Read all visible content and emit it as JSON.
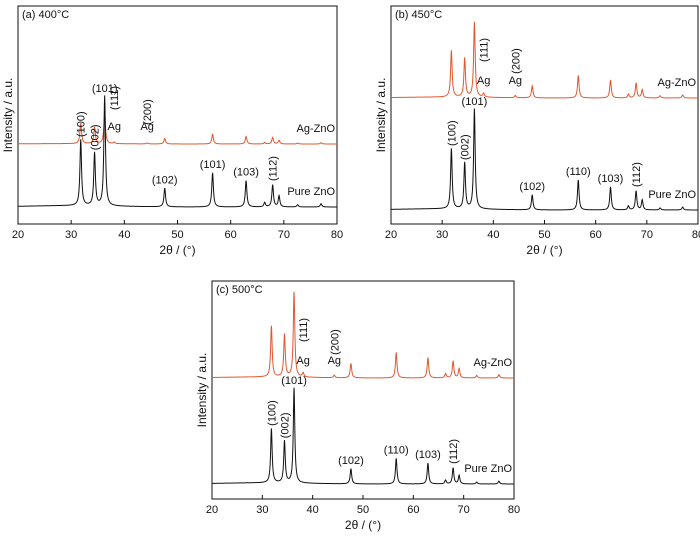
{
  "chart_data": [
    {
      "type": "line",
      "title": "(a) 400°C",
      "xlabel": "2θ / (°)",
      "ylabel": "Intensity / a.u.",
      "xlim": [
        20,
        80
      ],
      "x_ticks": [
        20,
        30,
        40,
        50,
        60,
        70,
        80
      ],
      "y_ticks_shown": false,
      "series": [
        {
          "name": "Ag-ZnO",
          "color": "#e0582f",
          "peaks": [
            [
              31.8,
              0.68
            ],
            [
              34.4,
              0.55
            ],
            [
              36.3,
              1.0
            ],
            [
              38.1,
              0.05
            ],
            [
              44.3,
              0.03
            ],
            [
              47.6,
              0.18
            ],
            [
              56.6,
              0.32
            ],
            [
              62.9,
              0.25
            ],
            [
              66.4,
              0.05
            ],
            [
              67.9,
              0.22
            ],
            [
              69.1,
              0.12
            ],
            [
              72.6,
              0.03
            ],
            [
              77.0,
              0.04
            ]
          ],
          "labels": [
            {
              "text": "Ag",
              "x": 38.1
            },
            {
              "text": "(111)",
              "x": 38.1
            },
            {
              "text": "Ag",
              "x": 44.3
            },
            {
              "text": "(200)",
              "x": 44.3
            }
          ]
        },
        {
          "name": "Pure ZnO",
          "color": "#111111",
          "peaks": [
            [
              31.8,
              0.6
            ],
            [
              34.4,
              0.48
            ],
            [
              36.3,
              1.0
            ],
            [
              47.6,
              0.17
            ],
            [
              56.6,
              0.31
            ],
            [
              62.9,
              0.24
            ],
            [
              66.4,
              0.04
            ],
            [
              67.9,
              0.2
            ],
            [
              69.1,
              0.1
            ],
            [
              72.6,
              0.02
            ],
            [
              77.0,
              0.03
            ]
          ],
          "labels": [
            {
              "text": "(100)",
              "x": 31.8
            },
            {
              "text": "(002)",
              "x": 34.4
            },
            {
              "text": "(101)",
              "x": 36.3
            },
            {
              "text": "(102)",
              "x": 47.6
            },
            {
              "text": "(101)",
              "x": 56.6
            },
            {
              "text": "(103)",
              "x": 62.9
            },
            {
              "text": "(112)",
              "x": 67.9
            }
          ]
        }
      ]
    },
    {
      "type": "line",
      "title": "(b) 450°C",
      "xlabel": "2θ / (°)",
      "ylabel": "Intensity / a.u.",
      "xlim": [
        20,
        80
      ],
      "x_ticks": [
        20,
        30,
        40,
        50,
        60,
        70,
        80
      ],
      "y_ticks_shown": false,
      "series": [
        {
          "name": "Ag-ZnO",
          "color": "#e0582f",
          "peaks": [
            [
              31.8,
              0.62
            ],
            [
              34.4,
              0.52
            ],
            [
              36.3,
              1.0
            ],
            [
              38.1,
              0.05
            ],
            [
              44.3,
              0.03
            ],
            [
              47.6,
              0.16
            ],
            [
              56.6,
              0.3
            ],
            [
              62.9,
              0.24
            ],
            [
              66.4,
              0.05
            ],
            [
              67.9,
              0.2
            ],
            [
              69.1,
              0.11
            ],
            [
              72.6,
              0.03
            ],
            [
              77.0,
              0.04
            ]
          ],
          "labels": [
            {
              "text": "Ag",
              "x": 38.1
            },
            {
              "text": "(111)",
              "x": 38.1
            },
            {
              "text": "Ag",
              "x": 44.3
            },
            {
              "text": "(200)",
              "x": 44.3
            }
          ]
        },
        {
          "name": "Pure ZnO",
          "color": "#111111",
          "peaks": [
            [
              31.8,
              0.6
            ],
            [
              34.4,
              0.46
            ],
            [
              36.3,
              1.0
            ],
            [
              47.6,
              0.15
            ],
            [
              56.6,
              0.3
            ],
            [
              62.9,
              0.23
            ],
            [
              66.4,
              0.04
            ],
            [
              67.9,
              0.19
            ],
            [
              69.1,
              0.1
            ],
            [
              72.6,
              0.02
            ],
            [
              77.0,
              0.03
            ]
          ],
          "labels": [
            {
              "text": "(100)",
              "x": 31.8
            },
            {
              "text": "(002)",
              "x": 34.4
            },
            {
              "text": "(101)",
              "x": 36.3
            },
            {
              "text": "(102)",
              "x": 47.6
            },
            {
              "text": "(110)",
              "x": 56.6
            },
            {
              "text": "(103)",
              "x": 62.9
            },
            {
              "text": "(112)",
              "x": 67.9
            }
          ]
        }
      ]
    },
    {
      "type": "line",
      "title": "(c) 500°C",
      "xlabel": "2θ / (°)",
      "ylabel": "Intensity / a.u.",
      "xlim": [
        20,
        80
      ],
      "x_ticks": [
        20,
        30,
        40,
        50,
        60,
        70,
        80
      ],
      "y_ticks_shown": false,
      "series": [
        {
          "name": "Ag-ZnO",
          "color": "#e0582f",
          "peaks": [
            [
              31.8,
              0.6
            ],
            [
              34.4,
              0.5
            ],
            [
              36.3,
              1.0
            ],
            [
              38.1,
              0.05
            ],
            [
              44.3,
              0.03
            ],
            [
              47.6,
              0.17
            ],
            [
              56.6,
              0.3
            ],
            [
              62.9,
              0.24
            ],
            [
              66.4,
              0.05
            ],
            [
              67.9,
              0.2
            ],
            [
              69.1,
              0.11
            ],
            [
              72.6,
              0.03
            ],
            [
              77.0,
              0.04
            ]
          ],
          "labels": [
            {
              "text": "Ag",
              "x": 38.1
            },
            {
              "text": "(111)",
              "x": 38.1
            },
            {
              "text": "Ag",
              "x": 44.3
            },
            {
              "text": "(200)",
              "x": 44.3
            }
          ]
        },
        {
          "name": "Pure ZnO",
          "color": "#111111",
          "peaks": [
            [
              31.8,
              0.57
            ],
            [
              34.4,
              0.44
            ],
            [
              36.3,
              1.0
            ],
            [
              47.6,
              0.16
            ],
            [
              56.6,
              0.27
            ],
            [
              62.9,
              0.22
            ],
            [
              66.4,
              0.04
            ],
            [
              67.9,
              0.17
            ],
            [
              69.1,
              0.09
            ],
            [
              72.6,
              0.02
            ],
            [
              77.0,
              0.03
            ]
          ],
          "labels": [
            {
              "text": "(100)",
              "x": 31.8
            },
            {
              "text": "(002)",
              "x": 34.4
            },
            {
              "text": "(101)",
              "x": 36.3
            },
            {
              "text": "(102)",
              "x": 47.6
            },
            {
              "text": "(110)",
              "x": 56.6
            },
            {
              "text": "(103)",
              "x": 62.9
            },
            {
              "text": "(112)",
              "x": 67.9
            }
          ]
        }
      ]
    }
  ]
}
